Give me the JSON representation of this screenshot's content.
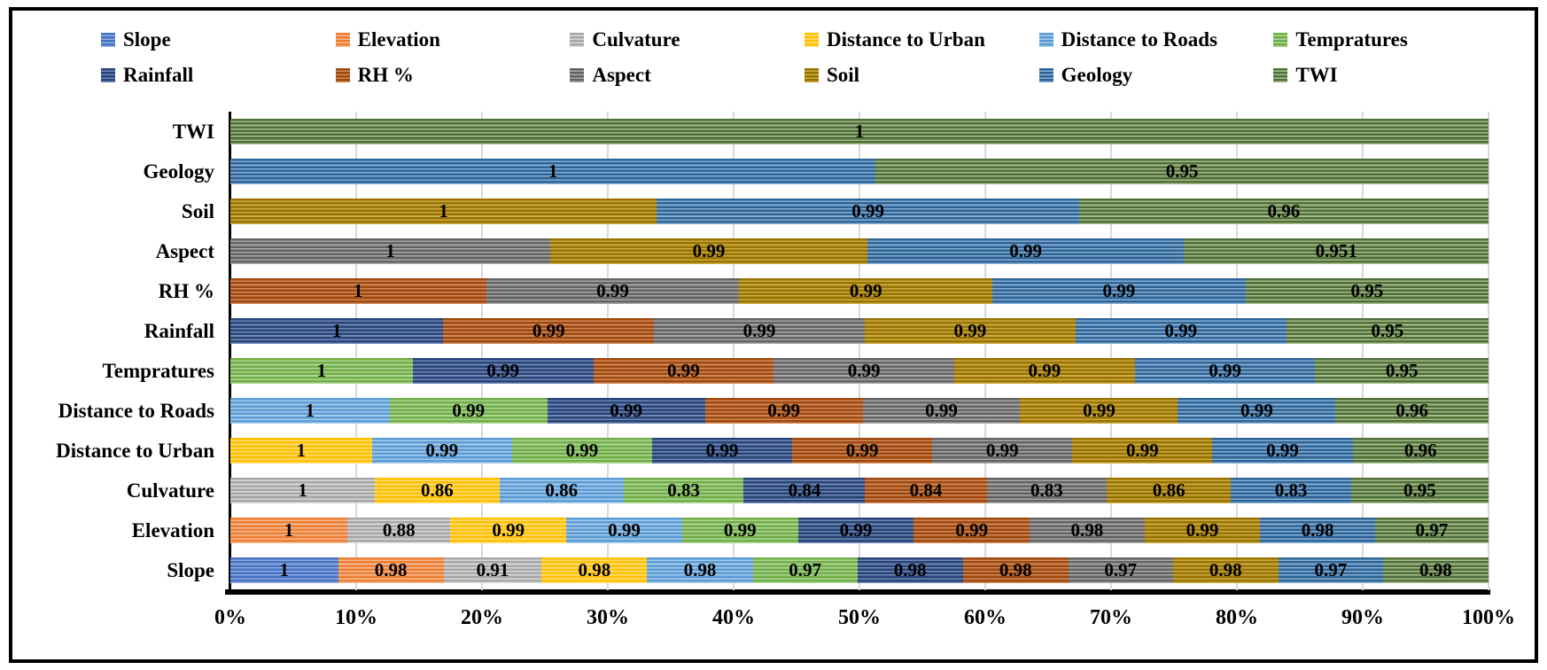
{
  "chart_data": {
    "type": "bar",
    "orientation": "horizontal",
    "stacked": "100%",
    "grid": true,
    "legend_position": "top",
    "xlim": [
      0,
      100
    ],
    "x_ticks": [
      "0%",
      "10%",
      "20%",
      "30%",
      "40%",
      "50%",
      "60%",
      "70%",
      "80%",
      "90%",
      "100%"
    ],
    "series": [
      {
        "name": "Slope",
        "base": "#4472C4",
        "light": "#93ACDE"
      },
      {
        "name": "Elevation",
        "base": "#ED7D31",
        "light": "#F5BB92"
      },
      {
        "name": "Culvature",
        "base": "#A6A6A6",
        "light": "#D9D9D9"
      },
      {
        "name": "Distance to Urban",
        "base": "#FFC000",
        "light": "#FFDE7A"
      },
      {
        "name": "Distance to Roads",
        "base": "#5B9BD5",
        "light": "#A7CCEA"
      },
      {
        "name": "Tempratures",
        "base": "#70AD47",
        "light": "#AFD694"
      },
      {
        "name": "Rainfall",
        "base": "#264478",
        "light": "#7388B5"
      },
      {
        "name": "RH %",
        "base": "#9E480E",
        "light": "#D08A5A"
      },
      {
        "name": "Aspect",
        "base": "#636363",
        "light": "#A8A8A8"
      },
      {
        "name": "Soil",
        "base": "#997300",
        "light": "#CBAB45"
      },
      {
        "name": "Geology",
        "base": "#2E6396",
        "light": "#87AFD3"
      },
      {
        "name": "TWI",
        "base": "#4F6E38",
        "light": "#A6BD8C"
      }
    ],
    "rows": [
      {
        "category": "TWI",
        "segments": [
          {
            "series": "TWI",
            "value": 1,
            "label": "1"
          }
        ]
      },
      {
        "category": "Geology",
        "segments": [
          {
            "series": "Geology",
            "value": 1,
            "label": "1"
          },
          {
            "series": "TWI",
            "value": 0.95,
            "label": "0.95"
          }
        ]
      },
      {
        "category": "Soil",
        "segments": [
          {
            "series": "Soil",
            "value": 1,
            "label": "1"
          },
          {
            "series": "Geology",
            "value": 0.99,
            "label": "0.99"
          },
          {
            "series": "TWI",
            "value": 0.96,
            "label": "0.96"
          }
        ]
      },
      {
        "category": "Aspect",
        "segments": [
          {
            "series": "Aspect",
            "value": 1,
            "label": "1"
          },
          {
            "series": "Soil",
            "value": 0.99,
            "label": "0.99"
          },
          {
            "series": "Geology",
            "value": 0.99,
            "label": "0.99"
          },
          {
            "series": "TWI",
            "value": 0.951,
            "label": "0.951"
          }
        ]
      },
      {
        "category": "RH %",
        "segments": [
          {
            "series": "RH %",
            "value": 1,
            "label": "1"
          },
          {
            "series": "Aspect",
            "value": 0.99,
            "label": "0.99"
          },
          {
            "series": "Soil",
            "value": 0.99,
            "label": "0.99"
          },
          {
            "series": "Geology",
            "value": 0.99,
            "label": "0.99"
          },
          {
            "series": "TWI",
            "value": 0.95,
            "label": "0.95"
          }
        ]
      },
      {
        "category": "Rainfall",
        "segments": [
          {
            "series": "Rainfall",
            "value": 1,
            "label": "1"
          },
          {
            "series": "RH %",
            "value": 0.99,
            "label": "0.99"
          },
          {
            "series": "Aspect",
            "value": 0.99,
            "label": "0.99"
          },
          {
            "series": "Soil",
            "value": 0.99,
            "label": "0.99"
          },
          {
            "series": "Geology",
            "value": 0.99,
            "label": "0.99"
          },
          {
            "series": "TWI",
            "value": 0.95,
            "label": "0.95"
          }
        ]
      },
      {
        "category": "Tempratures",
        "segments": [
          {
            "series": "Tempratures",
            "value": 1,
            "label": "1"
          },
          {
            "series": "Rainfall",
            "value": 0.99,
            "label": "0.99"
          },
          {
            "series": "RH %",
            "value": 0.99,
            "label": "0.99"
          },
          {
            "series": "Aspect",
            "value": 0.99,
            "label": "0.99"
          },
          {
            "series": "Soil",
            "value": 0.99,
            "label": "0.99"
          },
          {
            "series": "Geology",
            "value": 0.99,
            "label": "0.99"
          },
          {
            "series": "TWI",
            "value": 0.95,
            "label": "0.95"
          }
        ]
      },
      {
        "category": "Distance to Roads",
        "segments": [
          {
            "series": "Distance to Roads",
            "value": 1,
            "label": "1"
          },
          {
            "series": "Tempratures",
            "value": 0.99,
            "label": "0.99"
          },
          {
            "series": "Rainfall",
            "value": 0.99,
            "label": "0.99"
          },
          {
            "series": "RH %",
            "value": 0.99,
            "label": "0.99"
          },
          {
            "series": "Aspect",
            "value": 0.99,
            "label": "0.99"
          },
          {
            "series": "Soil",
            "value": 0.99,
            "label": "0.99"
          },
          {
            "series": "Geology",
            "value": 0.99,
            "label": "0.99"
          },
          {
            "series": "TWI",
            "value": 0.96,
            "label": "0.96"
          }
        ]
      },
      {
        "category": "Distance to Urban",
        "segments": [
          {
            "series": "Distance to Urban",
            "value": 1,
            "label": "1"
          },
          {
            "series": "Distance to Roads",
            "value": 0.99,
            "label": "0.99"
          },
          {
            "series": "Tempratures",
            "value": 0.99,
            "label": "0.99"
          },
          {
            "series": "Rainfall",
            "value": 0.99,
            "label": "0.99"
          },
          {
            "series": "RH %",
            "value": 0.99,
            "label": "0.99"
          },
          {
            "series": "Aspect",
            "value": 0.99,
            "label": "0.99"
          },
          {
            "series": "Soil",
            "value": 0.99,
            "label": "0.99"
          },
          {
            "series": "Geology",
            "value": 0.99,
            "label": "0.99"
          },
          {
            "series": "TWI",
            "value": 0.96,
            "label": "0.96"
          }
        ]
      },
      {
        "category": "Culvature",
        "segments": [
          {
            "series": "Culvature",
            "value": 1,
            "label": "1"
          },
          {
            "series": "Distance to Urban",
            "value": 0.86,
            "label": "0.86"
          },
          {
            "series": "Distance to Roads",
            "value": 0.86,
            "label": "0.86"
          },
          {
            "series": "Tempratures",
            "value": 0.83,
            "label": "0.83"
          },
          {
            "series": "Rainfall",
            "value": 0.84,
            "label": "0.84"
          },
          {
            "series": "RH %",
            "value": 0.84,
            "label": "0.84"
          },
          {
            "series": "Aspect",
            "value": 0.83,
            "label": "0.83"
          },
          {
            "series": "Soil",
            "value": 0.86,
            "label": "0.86"
          },
          {
            "series": "Geology",
            "value": 0.83,
            "label": "0.83"
          },
          {
            "series": "TWI",
            "value": 0.95,
            "label": "0.95"
          }
        ]
      },
      {
        "category": "Elevation",
        "segments": [
          {
            "series": "Elevation",
            "value": 1,
            "label": "1"
          },
          {
            "series": "Culvature",
            "value": 0.88,
            "label": "0.88"
          },
          {
            "series": "Distance to Urban",
            "value": 0.99,
            "label": "0.99"
          },
          {
            "series": "Distance to Roads",
            "value": 0.99,
            "label": "0.99"
          },
          {
            "series": "Tempratures",
            "value": 0.99,
            "label": "0.99"
          },
          {
            "series": "Rainfall",
            "value": 0.99,
            "label": "0.99"
          },
          {
            "series": "RH %",
            "value": 0.99,
            "label": "0.99"
          },
          {
            "series": "Aspect",
            "value": 0.98,
            "label": "0.98"
          },
          {
            "series": "Soil",
            "value": 0.99,
            "label": "0.99"
          },
          {
            "series": "Geology",
            "value": 0.98,
            "label": "0.98"
          },
          {
            "series": "TWI",
            "value": 0.97,
            "label": "0.97"
          }
        ]
      },
      {
        "category": "Slope",
        "segments": [
          {
            "series": "Slope",
            "value": 1,
            "label": "1"
          },
          {
            "series": "Elevation",
            "value": 0.98,
            "label": "0.98"
          },
          {
            "series": "Culvature",
            "value": 0.91,
            "label": "0.91"
          },
          {
            "series": "Distance to Urban",
            "value": 0.98,
            "label": "0.98"
          },
          {
            "series": "Distance to Roads",
            "value": 0.98,
            "label": "0.98"
          },
          {
            "series": "Tempratures",
            "value": 0.97,
            "label": "0.97"
          },
          {
            "series": "Rainfall",
            "value": 0.98,
            "label": "0.98"
          },
          {
            "series": "RH %",
            "value": 0.98,
            "label": "0.98"
          },
          {
            "series": "Aspect",
            "value": 0.97,
            "label": "0.97"
          },
          {
            "series": "Soil",
            "value": 0.98,
            "label": "0.98"
          },
          {
            "series": "Geology",
            "value": 0.97,
            "label": "0.97"
          },
          {
            "series": "TWI",
            "value": 0.98,
            "label": "0.98"
          }
        ]
      }
    ],
    "colors": {
      "grid_line": "#D9D9D9",
      "axis_line": "#000000",
      "label_text": "#000000",
      "background": "#FFFFFF"
    }
  }
}
